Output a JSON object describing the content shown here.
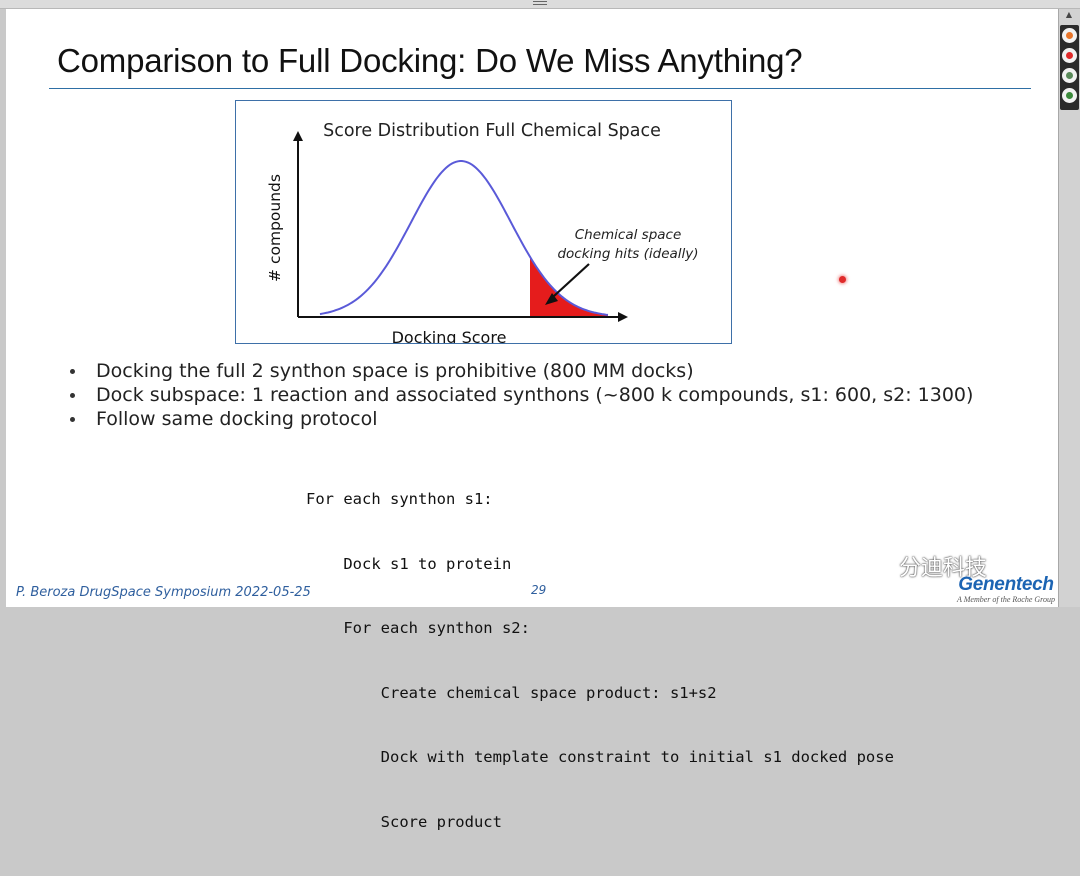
{
  "slide": {
    "title": "Comparison to Full Docking: Do We Miss Anything?",
    "bullets": [
      "Docking the full 2 synthon space is prohibitive (800 MM docks)",
      "Dock subspace: 1 reaction and associated synthons (~800 k compounds, s1: 600, s2: 1300)",
      "Follow same docking protocol"
    ],
    "code_lines": [
      "For each synthon s1:",
      "    Dock s1 to protein",
      "    For each synthon s2:",
      "        Create chemical space product: s1+s2",
      "        Dock with template constraint to initial s1 docked pose",
      "        Score product"
    ],
    "footer": {
      "left": "P. Beroza DrugSpace Symposium 2022-05-25",
      "page_number": "29"
    },
    "logo": {
      "name": "Genentech",
      "tagline": "A Member of the Roche Group"
    },
    "watermark": "分迪科技"
  },
  "chart_data": {
    "type": "area",
    "title": "Score Distribution Full Chemical Space",
    "xlabel": "Docking Score",
    "ylabel": "# compounds",
    "annotation": [
      "Chemical space",
      "docking hits (ideally)"
    ],
    "curve": "bell-shaped",
    "highlight": "right tail",
    "colors": {
      "curve": "#5a5ad8",
      "highlight": "#e51c1c",
      "axis": "#111111"
    }
  },
  "colors": {
    "title_rule": "#2e6fa5",
    "chart_border": "#3e70a8",
    "footer_text": "#2f5f9e",
    "logo": "#1c64b3",
    "laser_pointer": "#e02a2a"
  },
  "window": {
    "tools": [
      "pen-tool-icon",
      "record-icon",
      "screen-icon",
      "settings-icon"
    ]
  }
}
